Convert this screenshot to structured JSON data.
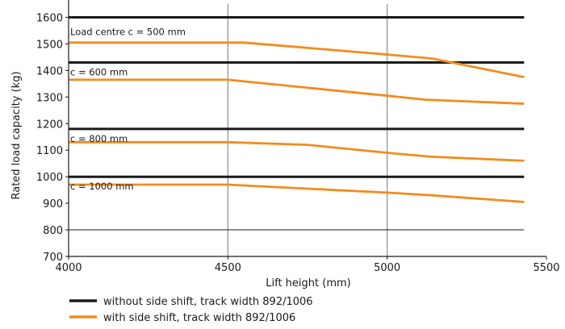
{
  "chart_data": {
    "type": "line",
    "xlabel": "Lift height (mm)",
    "ylabel": "Rated load capacity (kg)",
    "xlim": [
      4000,
      5500
    ],
    "ylim": [
      700,
      1650
    ],
    "x_ticks": [
      4000,
      4500,
      5000,
      5500
    ],
    "y_ticks": [
      700,
      800,
      900,
      1000,
      1100,
      1200,
      1300,
      1400,
      1500,
      1600
    ],
    "grid": "vertical at 4500 and 5000, horizontal at 800",
    "colors": {
      "without_side_shift": "#1a1a1a",
      "with_side_shift": "#f28c1e"
    },
    "legend": [
      {
        "key": "without_side_shift",
        "label": "without side shift, track width 892/1006"
      },
      {
        "key": "with_side_shift",
        "label": "with side shift, track width 892/1006"
      }
    ],
    "curve_labels": [
      {
        "text": "Load centre c = 500 mm",
        "y": 1600
      },
      {
        "text": "c = 600 mm",
        "y": 1430
      },
      {
        "text": "c = 800 mm",
        "y": 1180
      },
      {
        "text": "c = 1000 mm",
        "y": 1000
      }
    ],
    "series": [
      {
        "key": "without_side_shift",
        "x": [
          4000,
          5430
        ],
        "y": [
          1600,
          1600
        ]
      },
      {
        "key": "without_side_shift",
        "x": [
          4000,
          5430
        ],
        "y": [
          1430,
          1430
        ]
      },
      {
        "key": "without_side_shift",
        "x": [
          4000,
          5430
        ],
        "y": [
          1180,
          1180
        ]
      },
      {
        "key": "without_side_shift",
        "x": [
          4000,
          5430
        ],
        "y": [
          1000,
          1000
        ]
      },
      {
        "key": "with_side_shift",
        "x": [
          4000,
          4550,
          5000,
          5140,
          5430
        ],
        "y": [
          1505,
          1505,
          1460,
          1445,
          1375
        ]
      },
      {
        "key": "with_side_shift",
        "x": [
          4000,
          4500,
          5000,
          5120,
          5430
        ],
        "y": [
          1365,
          1365,
          1305,
          1290,
          1275
        ]
      },
      {
        "key": "with_side_shift",
        "x": [
          4000,
          4500,
          4750,
          5000,
          5140,
          5430
        ],
        "y": [
          1130,
          1130,
          1120,
          1090,
          1075,
          1060
        ]
      },
      {
        "key": "with_side_shift",
        "x": [
          4000,
          4500,
          5000,
          5140,
          5430
        ],
        "y": [
          970,
          970,
          940,
          930,
          905
        ]
      }
    ]
  }
}
